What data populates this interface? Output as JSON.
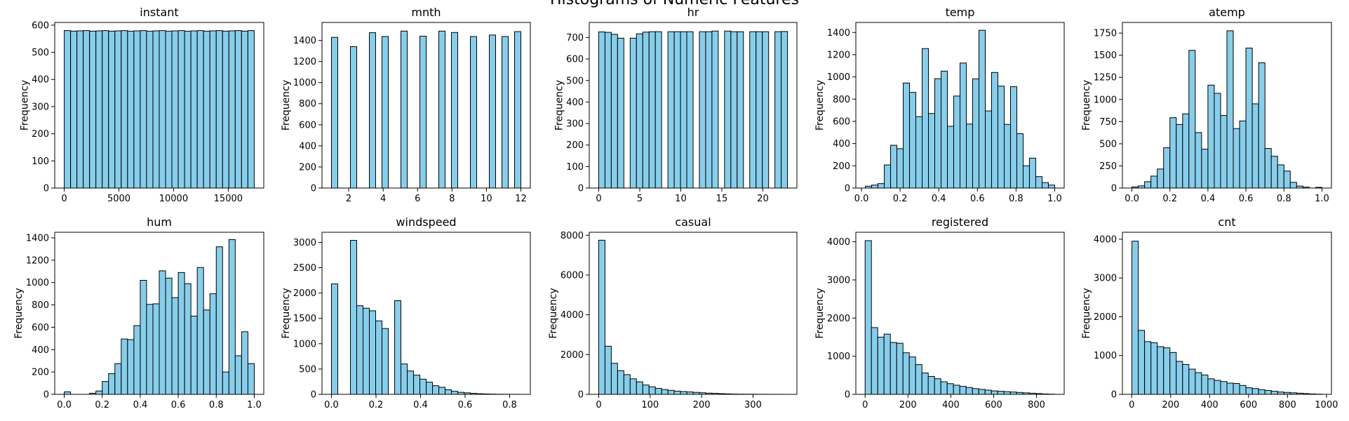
{
  "figure": {
    "title": "Histograms of Numeric Features",
    "bar_color": "#87CEEB",
    "edge_color": "#000000"
  },
  "chart_data": [
    {
      "type": "bar",
      "title": "instant",
      "ylabel": "Frequency",
      "xlim": [
        -870,
        18250
      ],
      "ylim": [
        0,
        610
      ],
      "xticks": [
        0,
        5000,
        10000,
        15000
      ],
      "xtick_labels": [
        "0",
        "5000",
        "10000",
        "15000"
      ],
      "yticks": [
        0,
        100,
        200,
        300,
        400,
        500,
        600
      ],
      "ytick_labels": [
        "0",
        "100",
        "200",
        "300",
        "400",
        "500",
        "600"
      ],
      "bin_edges": [
        1,
        580.2,
        1159.4,
        1738.6,
        2317.8,
        2897,
        3476.2,
        4055.4,
        4634.6,
        5213.8,
        5793,
        6372.2,
        6951.4,
        7530.6,
        8109.8,
        8689,
        9268.2,
        9847.4,
        10426.6,
        11005.8,
        11585,
        12164.2,
        12743.4,
        13322.6,
        13901.8,
        14481,
        15060.2,
        15639.4,
        16218.6,
        16797.8,
        17377
      ],
      "counts": [
        580,
        578,
        579,
        580,
        578,
        579,
        580,
        578,
        579,
        580,
        578,
        579,
        580,
        578,
        579,
        580,
        578,
        579,
        580,
        578,
        579,
        580,
        578,
        579,
        580,
        578,
        579,
        580,
        578,
        580
      ]
    },
    {
      "type": "bar",
      "title": "mnth",
      "ylabel": "Frequency",
      "xlim": [
        0.45,
        12.55
      ],
      "ylim": [
        0,
        1570
      ],
      "xticks": [
        2,
        4,
        6,
        8,
        10,
        12
      ],
      "xtick_labels": [
        "2",
        "4",
        "6",
        "8",
        "10",
        "12"
      ],
      "yticks": [
        0,
        200,
        400,
        600,
        800,
        1000,
        1200,
        1400
      ],
      "ytick_labels": [
        "0",
        "200",
        "400",
        "600",
        "800",
        "1000",
        "1200",
        "1400"
      ],
      "bin_edges": [
        1,
        1.3667,
        1.7333,
        2.1,
        2.4667,
        2.8333,
        3.2,
        3.5667,
        3.9333,
        4.3,
        4.6667,
        5.0333,
        5.4,
        5.7667,
        6.1333,
        6.5,
        6.8667,
        7.2333,
        7.6,
        7.9667,
        8.3333,
        8.7,
        9.0667,
        9.4333,
        9.8,
        10.1667,
        10.5333,
        10.9,
        11.2667,
        11.6333,
        12
      ],
      "counts": [
        1429,
        0,
        0,
        1341,
        0,
        0,
        1473,
        0,
        1437,
        0,
        0,
        1488,
        0,
        0,
        1440,
        0,
        0,
        1488,
        0,
        1475,
        0,
        0,
        1437,
        0,
        0,
        1451,
        0,
        1437,
        0,
        1483
      ]
    },
    {
      "type": "bar",
      "title": "hr",
      "ylabel": "Frequency",
      "xlim": [
        -1.15,
        24.15
      ],
      "ylim": [
        0,
        770
      ],
      "xticks": [
        0,
        5,
        10,
        15,
        20
      ],
      "xtick_labels": [
        "0",
        "5",
        "10",
        "15",
        "20"
      ],
      "yticks": [
        0,
        100,
        200,
        300,
        400,
        500,
        600,
        700
      ],
      "ytick_labels": [
        "0",
        "100",
        "200",
        "300",
        "400",
        "500",
        "600",
        "700"
      ],
      "bin_edges": [
        0,
        0.7667,
        1.5333,
        2.3,
        3.0667,
        3.8333,
        4.6,
        5.3667,
        6.1333,
        6.9,
        7.6667,
        8.4333,
        9.2,
        9.9667,
        10.7333,
        11.5,
        12.2667,
        13.0333,
        13.8,
        14.5667,
        15.3333,
        16.1,
        16.8667,
        17.6333,
        18.4,
        19.1667,
        19.9333,
        20.7,
        21.4667,
        22.2333,
        23
      ],
      "counts": [
        726,
        724,
        715,
        697,
        0,
        697,
        717,
        725,
        727,
        727,
        0,
        727,
        727,
        727,
        727,
        0,
        727,
        727,
        730,
        0,
        730,
        727,
        727,
        0,
        727,
        727,
        727,
        0,
        727,
        728
      ]
    },
    {
      "type": "bar",
      "title": "temp",
      "ylabel": "Frequency",
      "xlim": [
        -0.0291,
        1.0491
      ],
      "ylim": [
        0,
        1490
      ],
      "xticks": [
        0,
        0.2,
        0.4,
        0.6,
        0.8,
        1.0
      ],
      "xtick_labels": [
        "0.0",
        "0.2",
        "0.4",
        "0.6",
        "0.8",
        "1.0"
      ],
      "yticks": [
        0,
        200,
        400,
        600,
        800,
        1000,
        1200,
        1400
      ],
      "ytick_labels": [
        "0",
        "200",
        "400",
        "600",
        "800",
        "1000",
        "1200",
        "1400"
      ],
      "bin_edges": [
        0.02,
        0.0527,
        0.0853,
        0.118,
        0.1507,
        0.1833,
        0.216,
        0.2487,
        0.2813,
        0.314,
        0.3467,
        0.3793,
        0.412,
        0.4447,
        0.4773,
        0.51,
        0.5427,
        0.5753,
        0.608,
        0.6407,
        0.6733,
        0.706,
        0.7387,
        0.7713,
        0.804,
        0.8367,
        0.8693,
        0.902,
        0.9347,
        0.9673,
        1.0
      ],
      "counts": [
        17,
        27,
        40,
        208,
        385,
        354,
        945,
        861,
        642,
        1255,
        671,
        984,
        1052,
        556,
        828,
        1125,
        576,
        983,
        1420,
        694,
        1040,
        917,
        573,
        912,
        489,
        200,
        269,
        103,
        49,
        27
      ]
    },
    {
      "type": "bar",
      "title": "atemp",
      "ylabel": "Frequency",
      "xlim": [
        -0.05,
        1.05
      ],
      "ylim": [
        0,
        1870
      ],
      "xticks": [
        0,
        0.2,
        0.4,
        0.6,
        0.8,
        1.0
      ],
      "xtick_labels": [
        "0.0",
        "0.2",
        "0.4",
        "0.6",
        "0.8",
        "1.0"
      ],
      "yticks": [
        0,
        250,
        500,
        750,
        1000,
        1250,
        1500,
        1750
      ],
      "ytick_labels": [
        "0",
        "250",
        "500",
        "750",
        "1000",
        "1250",
        "1500",
        "1750"
      ],
      "bin_edges": [
        0,
        0.0333,
        0.0667,
        0.1,
        0.1333,
        0.1667,
        0.2,
        0.2333,
        0.2667,
        0.3,
        0.3333,
        0.3667,
        0.4,
        0.4333,
        0.4667,
        0.5,
        0.5333,
        0.5667,
        0.6,
        0.6333,
        0.6667,
        0.7,
        0.7333,
        0.7667,
        0.8,
        0.8333,
        0.8667,
        0.9,
        0.9333,
        0.9667,
        1.0
      ],
      "counts": [
        12,
        25,
        72,
        135,
        215,
        455,
        795,
        718,
        838,
        1555,
        627,
        439,
        1162,
        1070,
        820,
        1776,
        672,
        758,
        1581,
        951,
        1415,
        447,
        359,
        262,
        192,
        65,
        23,
        10,
        0,
        8
      ]
    },
    {
      "type": "bar",
      "title": "hum",
      "ylabel": "Frequency",
      "xlim": [
        -0.05,
        1.05
      ],
      "ylim": [
        0,
        1450
      ],
      "xticks": [
        0,
        0.2,
        0.4,
        0.6,
        0.8,
        1.0
      ],
      "xtick_labels": [
        "0.0",
        "0.2",
        "0.4",
        "0.6",
        "0.8",
        "1.0"
      ],
      "yticks": [
        0,
        200,
        400,
        600,
        800,
        1000,
        1200,
        1400
      ],
      "ytick_labels": [
        "0",
        "200",
        "400",
        "600",
        "800",
        "1000",
        "1200",
        "1400"
      ],
      "bin_edges": [
        0,
        0.0333,
        0.0667,
        0.1,
        0.1333,
        0.1667,
        0.2,
        0.2333,
        0.2667,
        0.3,
        0.3333,
        0.3667,
        0.4,
        0.4333,
        0.4667,
        0.5,
        0.5333,
        0.5667,
        0.6,
        0.6333,
        0.6667,
        0.7,
        0.7333,
        0.7667,
        0.8,
        0.8333,
        0.8667,
        0.9,
        0.9333,
        0.9667,
        1.0
      ],
      "counts": [
        22,
        0,
        0,
        0,
        10,
        30,
        115,
        185,
        275,
        495,
        490,
        615,
        1020,
        805,
        810,
        1105,
        1040,
        865,
        1090,
        990,
        700,
        1135,
        755,
        900,
        1320,
        200,
        1385,
        345,
        560,
        275
      ]
    },
    {
      "type": "bar",
      "title": "windspeed",
      "ylabel": "Frequency",
      "xlim": [
        -0.0425,
        0.893
      ],
      "ylim": [
        0,
        3200
      ],
      "xticks": [
        0,
        0.2,
        0.4,
        0.6,
        0.8
      ],
      "xtick_labels": [
        "0.0",
        "0.2",
        "0.4",
        "0.6",
        "0.8"
      ],
      "yticks": [
        0,
        500,
        1000,
        1500,
        2000,
        2500,
        3000
      ],
      "ytick_labels": [
        "0",
        "500",
        "1000",
        "1500",
        "2000",
        "2500",
        "3000"
      ],
      "bin_edges": [
        0,
        0.0284,
        0.0567,
        0.0851,
        0.1134,
        0.1418,
        0.1701,
        0.1985,
        0.2269,
        0.2552,
        0.2836,
        0.3119,
        0.3403,
        0.3687,
        0.397,
        0.4254,
        0.4537,
        0.4821,
        0.5104,
        0.5388,
        0.5672,
        0.5955,
        0.6239,
        0.6522,
        0.6806,
        0.7089,
        0.7373,
        0.7657,
        0.794,
        0.8224,
        0.8507
      ],
      "counts": [
        2180,
        0,
        0,
        3040,
        1750,
        1700,
        1650,
        1450,
        1300,
        0,
        1850,
        600,
        460,
        380,
        300,
        240,
        170,
        140,
        90,
        60,
        40,
        30,
        20,
        12,
        8,
        5,
        3,
        2,
        1,
        1
      ]
    },
    {
      "type": "bar",
      "title": "casual",
      "ylabel": "Frequency",
      "xlim": [
        -18.35,
        385.35
      ],
      "ylim": [
        0,
        8150
      ],
      "xticks": [
        0,
        100,
        200,
        300
      ],
      "xtick_labels": [
        "0",
        "100",
        "200",
        "300"
      ],
      "yticks": [
        0,
        2000,
        4000,
        6000,
        8000
      ],
      "ytick_labels": [
        "0",
        "2000",
        "4000",
        "6000",
        "8000"
      ],
      "bin_edges": [
        0,
        12.2333,
        24.4667,
        36.7,
        48.9333,
        61.1667,
        73.4,
        85.6333,
        97.8667,
        110.1,
        122.3333,
        134.5667,
        146.8,
        159.0333,
        171.2667,
        183.5,
        195.7333,
        207.9667,
        220.2,
        232.4333,
        244.6667,
        256.9,
        269.1333,
        281.3667,
        293.6,
        305.8333,
        318.0667,
        330.3,
        342.5333,
        354.7667,
        367
      ],
      "counts": [
        7750,
        2420,
        1560,
        1190,
        990,
        780,
        630,
        470,
        380,
        300,
        240,
        200,
        160,
        140,
        120,
        100,
        80,
        60,
        50,
        35,
        25,
        15,
        10,
        8,
        6,
        4,
        3,
        2,
        1,
        1
      ]
    },
    {
      "type": "bar",
      "title": "registered",
      "ylabel": "Frequency",
      "xlim": [
        -43.3,
        929.3
      ],
      "ylim": [
        0,
        4250
      ],
      "xticks": [
        0,
        200,
        400,
        600,
        800
      ],
      "xtick_labels": [
        "0",
        "200",
        "400",
        "600",
        "800"
      ],
      "yticks": [
        0,
        1000,
        2000,
        3000,
        4000
      ],
      "ytick_labels": [
        "0",
        "1000",
        "2000",
        "3000",
        "4000"
      ],
      "bin_edges": [
        0,
        29.4667,
        58.9333,
        88.4,
        117.8667,
        147.3333,
        176.8,
        206.2667,
        235.7333,
        265.2,
        294.6667,
        324.1333,
        353.6,
        383.0667,
        412.5333,
        442,
        471.4667,
        500.9333,
        530.4,
        559.8667,
        589.3333,
        618.8,
        648.2667,
        677.7333,
        707.2,
        736.6667,
        766.1333,
        795.6,
        825.0667,
        854.5333,
        884
      ],
      "counts": [
        4030,
        1750,
        1500,
        1580,
        1360,
        1340,
        1090,
        980,
        780,
        560,
        470,
        410,
        330,
        280,
        240,
        210,
        180,
        150,
        130,
        110,
        90,
        80,
        70,
        60,
        50,
        40,
        30,
        20,
        10,
        5
      ]
    },
    {
      "type": "bar",
      "title": "cnt",
      "ylabel": "Frequency",
      "xlim": [
        -47.8,
        1025.8
      ],
      "ylim": [
        0,
        4180
      ],
      "xticks": [
        0,
        200,
        400,
        600,
        800,
        1000
      ],
      "xtick_labels": [
        "0",
        "200",
        "400",
        "600",
        "800",
        "1000"
      ],
      "yticks": [
        0,
        1000,
        2000,
        3000,
        4000
      ],
      "ytick_labels": [
        "0",
        "1000",
        "2000",
        "3000",
        "4000"
      ],
      "bin_edges": [
        1,
        33.5333,
        66.0667,
        98.6,
        131.1333,
        163.6667,
        196.2,
        228.7333,
        261.2667,
        293.8,
        326.3333,
        358.8667,
        391.4,
        423.9333,
        456.4667,
        489,
        521.5333,
        554.0667,
        586.6,
        619.1333,
        651.6667,
        684.2,
        716.7333,
        749.2667,
        781.8,
        814.3333,
        846.8667,
        879.4,
        911.9333,
        944.4667,
        977
      ],
      "counts": [
        3950,
        1650,
        1360,
        1330,
        1230,
        1200,
        1080,
        850,
        770,
        650,
        560,
        500,
        400,
        360,
        330,
        290,
        280,
        230,
        170,
        150,
        120,
        100,
        80,
        60,
        50,
        40,
        30,
        20,
        10,
        5
      ]
    }
  ]
}
